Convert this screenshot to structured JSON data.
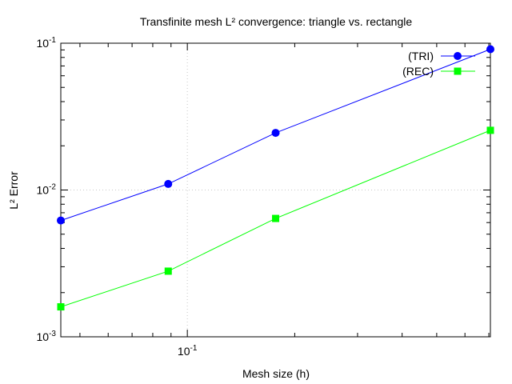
{
  "chart_data": {
    "type": "line",
    "title": "Transfinite mesh L² convergence: triangle vs. rectangle",
    "xlabel": "Mesh size (h)",
    "ylabel": "L² Error",
    "x_scale": "log",
    "y_scale": "log",
    "xlim": [
      0.04419,
      0.7071
    ],
    "ylim": [
      0.001,
      0.1
    ],
    "x_major_tick_labels": [
      {
        "value": 0.1,
        "base": "10",
        "exp": "-1"
      }
    ],
    "y_major_tick_labels": [
      {
        "value": 0.001,
        "base": "10",
        "exp": "-3"
      },
      {
        "value": 0.01,
        "base": "10",
        "exp": "-2"
      },
      {
        "value": 0.1,
        "base": "10",
        "exp": "-1"
      }
    ],
    "grid": true,
    "legend_position": "top-right",
    "series": [
      {
        "name": "(TRI)",
        "color": "#0000ff",
        "marker": "circle",
        "x": [
          0.04419,
          0.08839,
          0.1768,
          0.7071
        ],
        "values": [
          0.0062,
          0.011,
          0.0245,
          0.091
        ]
      },
      {
        "name": "(REC)",
        "color": "#00ff00",
        "marker": "square",
        "x": [
          0.04419,
          0.08839,
          0.1768,
          0.7071
        ],
        "values": [
          0.0016,
          0.0028,
          0.0064,
          0.0255
        ]
      }
    ]
  }
}
